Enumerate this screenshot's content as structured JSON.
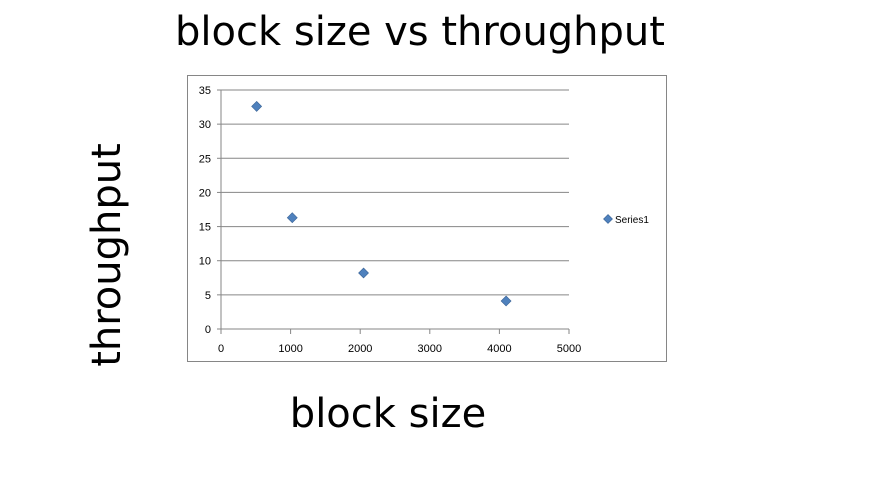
{
  "chart_data": {
    "type": "scatter",
    "title": "block size vs throughput",
    "xlabel": "block size",
    "ylabel": "throughput",
    "xlim": [
      0,
      5000
    ],
    "ylim": [
      0,
      35
    ],
    "xticks": [
      0,
      1000,
      2000,
      3000,
      4000,
      5000
    ],
    "yticks": [
      0,
      5,
      10,
      15,
      20,
      25,
      30,
      35
    ],
    "grid": "horizontal",
    "legend_position": "right",
    "series": [
      {
        "name": "Series1",
        "color": "#4f81bd",
        "marker": "diamond",
        "points": [
          {
            "x": 512,
            "y": 32.6
          },
          {
            "x": 1024,
            "y": 16.3
          },
          {
            "x": 2048,
            "y": 8.2
          },
          {
            "x": 4096,
            "y": 4.1
          }
        ]
      }
    ]
  }
}
